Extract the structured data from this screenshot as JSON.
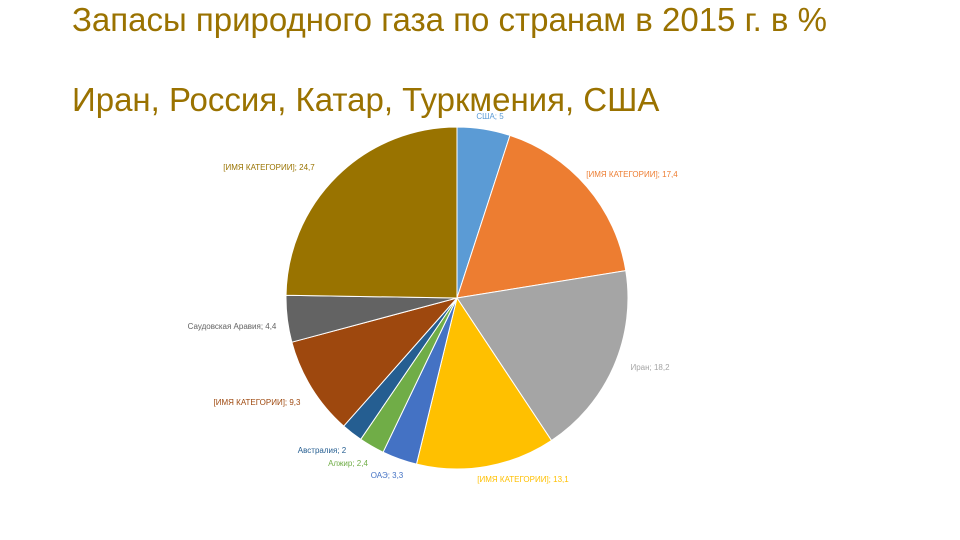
{
  "chart_data": {
    "type": "pie",
    "title": "Запасы природного газа по странам в 2015 г. в %",
    "subtitle": "Иран, Россия, Катар, Туркмения, США",
    "values": [
      5,
      17.4,
      18.2,
      13.1,
      3.3,
      2.4,
      2,
      9.3,
      4.4,
      24.7
    ],
    "value_labels": [
      "США; 5",
      "[ИМЯ КАТЕГОРИИ]; 17,4",
      "Иран; 18,2",
      "[ИМЯ КАТЕГОРИИ]; 13,1",
      "ОАЭ; 3,3",
      "Алжир; 2,4",
      "Австралия; 2",
      "[ИМЯ КАТЕГОРИИ]; 9,3",
      "Саудовская Аравия; 4,4",
      "[ИМЯ КАТЕГОРИИ]; 24,7"
    ],
    "colors": [
      "#5b9bd5",
      "#ed7d31",
      "#a5a5a5",
      "#ffc000",
      "#4472c4",
      "#70ad47",
      "#255e91",
      "#9e480e",
      "#636363",
      "#997300"
    ]
  }
}
